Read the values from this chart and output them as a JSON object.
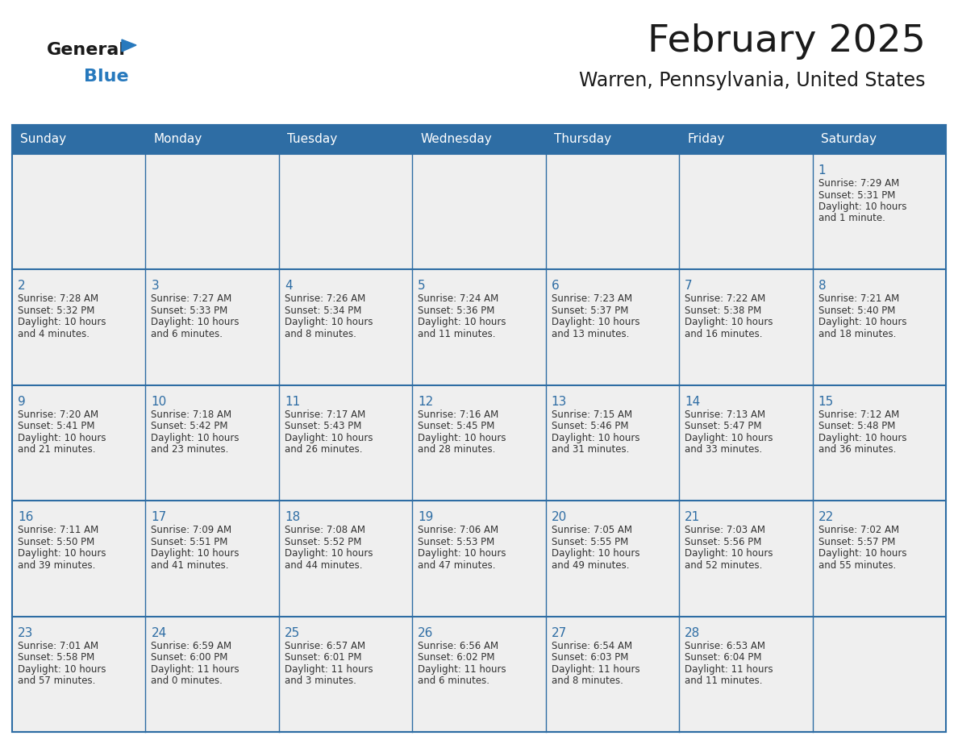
{
  "title": "February 2025",
  "subtitle": "Warren, Pennsylvania, United States",
  "header_bg": "#2E6DA4",
  "header_text": "#FFFFFF",
  "cell_bg": "#EFEFEF",
  "border_color": "#2E6DA4",
  "day_headers": [
    "Sunday",
    "Monday",
    "Tuesday",
    "Wednesday",
    "Thursday",
    "Friday",
    "Saturday"
  ],
  "logo_general_color": "#1A1A1A",
  "logo_blue_color": "#2779BD",
  "title_color": "#1A1A1A",
  "subtitle_color": "#1A1A1A",
  "day_num_color": "#2E6DA4",
  "cell_text_color": "#333333",
  "weeks": [
    [
      null,
      null,
      null,
      null,
      null,
      null,
      {
        "day": "1",
        "sunrise": "7:29 AM",
        "sunset": "5:31 PM",
        "daylight": "10 hours",
        "daylight2": "and 1 minute."
      }
    ],
    [
      {
        "day": "2",
        "sunrise": "7:28 AM",
        "sunset": "5:32 PM",
        "daylight": "10 hours",
        "daylight2": "and 4 minutes."
      },
      {
        "day": "3",
        "sunrise": "7:27 AM",
        "sunset": "5:33 PM",
        "daylight": "10 hours",
        "daylight2": "and 6 minutes."
      },
      {
        "day": "4",
        "sunrise": "7:26 AM",
        "sunset": "5:34 PM",
        "daylight": "10 hours",
        "daylight2": "and 8 minutes."
      },
      {
        "day": "5",
        "sunrise": "7:24 AM",
        "sunset": "5:36 PM",
        "daylight": "10 hours",
        "daylight2": "and 11 minutes."
      },
      {
        "day": "6",
        "sunrise": "7:23 AM",
        "sunset": "5:37 PM",
        "daylight": "10 hours",
        "daylight2": "and 13 minutes."
      },
      {
        "day": "7",
        "sunrise": "7:22 AM",
        "sunset": "5:38 PM",
        "daylight": "10 hours",
        "daylight2": "and 16 minutes."
      },
      {
        "day": "8",
        "sunrise": "7:21 AM",
        "sunset": "5:40 PM",
        "daylight": "10 hours",
        "daylight2": "and 18 minutes."
      }
    ],
    [
      {
        "day": "9",
        "sunrise": "7:20 AM",
        "sunset": "5:41 PM",
        "daylight": "10 hours",
        "daylight2": "and 21 minutes."
      },
      {
        "day": "10",
        "sunrise": "7:18 AM",
        "sunset": "5:42 PM",
        "daylight": "10 hours",
        "daylight2": "and 23 minutes."
      },
      {
        "day": "11",
        "sunrise": "7:17 AM",
        "sunset": "5:43 PM",
        "daylight": "10 hours",
        "daylight2": "and 26 minutes."
      },
      {
        "day": "12",
        "sunrise": "7:16 AM",
        "sunset": "5:45 PM",
        "daylight": "10 hours",
        "daylight2": "and 28 minutes."
      },
      {
        "day": "13",
        "sunrise": "7:15 AM",
        "sunset": "5:46 PM",
        "daylight": "10 hours",
        "daylight2": "and 31 minutes."
      },
      {
        "day": "14",
        "sunrise": "7:13 AM",
        "sunset": "5:47 PM",
        "daylight": "10 hours",
        "daylight2": "and 33 minutes."
      },
      {
        "day": "15",
        "sunrise": "7:12 AM",
        "sunset": "5:48 PM",
        "daylight": "10 hours",
        "daylight2": "and 36 minutes."
      }
    ],
    [
      {
        "day": "16",
        "sunrise": "7:11 AM",
        "sunset": "5:50 PM",
        "daylight": "10 hours",
        "daylight2": "and 39 minutes."
      },
      {
        "day": "17",
        "sunrise": "7:09 AM",
        "sunset": "5:51 PM",
        "daylight": "10 hours",
        "daylight2": "and 41 minutes."
      },
      {
        "day": "18",
        "sunrise": "7:08 AM",
        "sunset": "5:52 PM",
        "daylight": "10 hours",
        "daylight2": "and 44 minutes."
      },
      {
        "day": "19",
        "sunrise": "7:06 AM",
        "sunset": "5:53 PM",
        "daylight": "10 hours",
        "daylight2": "and 47 minutes."
      },
      {
        "day": "20",
        "sunrise": "7:05 AM",
        "sunset": "5:55 PM",
        "daylight": "10 hours",
        "daylight2": "and 49 minutes."
      },
      {
        "day": "21",
        "sunrise": "7:03 AM",
        "sunset": "5:56 PM",
        "daylight": "10 hours",
        "daylight2": "and 52 minutes."
      },
      {
        "day": "22",
        "sunrise": "7:02 AM",
        "sunset": "5:57 PM",
        "daylight": "10 hours",
        "daylight2": "and 55 minutes."
      }
    ],
    [
      {
        "day": "23",
        "sunrise": "7:01 AM",
        "sunset": "5:58 PM",
        "daylight": "10 hours",
        "daylight2": "and 57 minutes."
      },
      {
        "day": "24",
        "sunrise": "6:59 AM",
        "sunset": "6:00 PM",
        "daylight": "11 hours",
        "daylight2": "and 0 minutes."
      },
      {
        "day": "25",
        "sunrise": "6:57 AM",
        "sunset": "6:01 PM",
        "daylight": "11 hours",
        "daylight2": "and 3 minutes."
      },
      {
        "day": "26",
        "sunrise": "6:56 AM",
        "sunset": "6:02 PM",
        "daylight": "11 hours",
        "daylight2": "and 6 minutes."
      },
      {
        "day": "27",
        "sunrise": "6:54 AM",
        "sunset": "6:03 PM",
        "daylight": "11 hours",
        "daylight2": "and 8 minutes."
      },
      {
        "day": "28",
        "sunrise": "6:53 AM",
        "sunset": "6:04 PM",
        "daylight": "11 hours",
        "daylight2": "and 11 minutes."
      },
      null
    ]
  ]
}
